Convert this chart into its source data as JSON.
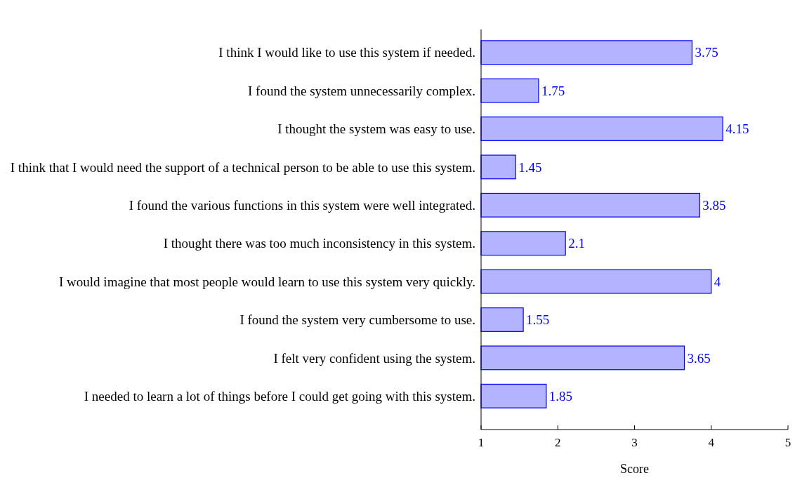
{
  "chart_data": {
    "type": "bar",
    "orientation": "horizontal",
    "xlabel": "Score",
    "categories": [
      "I think I would like to use this system if needed.",
      "I found the system unnecessarily complex.",
      "I thought the system was easy to use.",
      "I think that I would need the support of a technical person to be able to use this system.",
      "I found the various functions in this system were well integrated.",
      "I thought there was too much inconsistency in this system.",
      "I would imagine that most people would learn to use this system very quickly.",
      "I found the system very cumbersome to use.",
      "I felt very confident using the system.",
      "I needed to learn a lot of things before I could get going with this system."
    ],
    "values": [
      3.75,
      1.75,
      4.15,
      1.45,
      3.85,
      2.1,
      4,
      1.55,
      3.65,
      1.85
    ],
    "color": "#b3b3ff",
    "xlim": [
      1,
      5
    ],
    "xticks": [
      1,
      2,
      3,
      4,
      5
    ],
    "data_labels": true
  }
}
